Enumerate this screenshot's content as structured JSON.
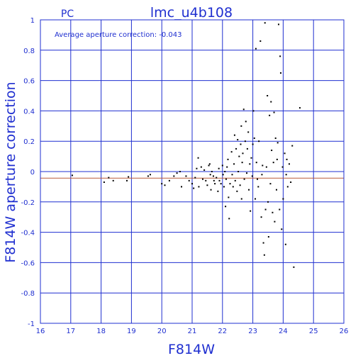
{
  "chart_data": {
    "type": "scatter",
    "title": "lmc_u4b108",
    "subtitle": "PC",
    "annotation": "Average aperture correction: -0.043",
    "xlabel": "F814W",
    "ylabel": "F814W aperture correction",
    "xlim": [
      16,
      26
    ],
    "ylim": [
      -1,
      1
    ],
    "xticks": [
      "16",
      "17",
      "18",
      "19",
      "20",
      "21",
      "22",
      "23",
      "24",
      "25",
      "26"
    ],
    "yticks": [
      "-1",
      "-0.8",
      "-0.6",
      "-0.4",
      "-0.2",
      "0",
      "0.2",
      "0.4",
      "0.6",
      "0.8",
      "1"
    ],
    "grid": true,
    "reference_lines": [
      {
        "name": "zero",
        "y": 0,
        "color": "#1f2fd0"
      },
      {
        "name": "average",
        "y": -0.043,
        "color": "#b85a3a"
      }
    ],
    "colors": {
      "axis": "#1f2fd0",
      "points": "#000000",
      "average_line": "#b85a3a"
    },
    "points": [
      [
        17.05,
        -0.025
      ],
      [
        18.1,
        -0.07
      ],
      [
        18.25,
        -0.04
      ],
      [
        18.4,
        -0.06
      ],
      [
        18.85,
        -0.06
      ],
      [
        18.9,
        -0.035
      ],
      [
        19.55,
        -0.03
      ],
      [
        19.62,
        -0.02
      ],
      [
        20.0,
        -0.08
      ],
      [
        20.1,
        -0.09
      ],
      [
        20.25,
        -0.06
      ],
      [
        20.4,
        -0.03
      ],
      [
        20.5,
        -0.01
      ],
      [
        20.6,
        0.0
      ],
      [
        20.65,
        -0.1
      ],
      [
        20.8,
        -0.03
      ],
      [
        20.9,
        -0.06
      ],
      [
        21.0,
        -0.08
      ],
      [
        21.05,
        -0.11
      ],
      [
        21.1,
        -0.04
      ],
      [
        21.15,
        0.02
      ],
      [
        21.2,
        0.09
      ],
      [
        21.22,
        -0.1
      ],
      [
        21.3,
        0.03
      ],
      [
        21.35,
        -0.05
      ],
      [
        21.4,
        0.01
      ],
      [
        21.45,
        -0.06
      ],
      [
        21.5,
        -0.09
      ],
      [
        21.55,
        0.04
      ],
      [
        21.58,
        0.05
      ],
      [
        21.6,
        -0.02
      ],
      [
        21.62,
        -0.12
      ],
      [
        21.65,
        0.0
      ],
      [
        21.7,
        -0.03
      ],
      [
        21.72,
        -0.06
      ],
      [
        21.75,
        -0.08
      ],
      [
        21.8,
        -0.04
      ],
      [
        21.85,
        -0.13
      ],
      [
        21.88,
        0.02
      ],
      [
        21.9,
        -0.06
      ],
      [
        21.95,
        -0.08
      ],
      [
        22.0,
        0.04
      ],
      [
        22.02,
        -0.02
      ],
      [
        22.05,
        -0.1
      ],
      [
        22.08,
        0.0
      ],
      [
        22.1,
        -0.23
      ],
      [
        22.12,
        -0.05
      ],
      [
        22.15,
        0.03
      ],
      [
        22.18,
        0.08
      ],
      [
        22.2,
        -0.17
      ],
      [
        22.22,
        -0.31
      ],
      [
        22.25,
        -0.08
      ],
      [
        22.3,
        0.13
      ],
      [
        22.32,
        -0.02
      ],
      [
        22.35,
        -0.1
      ],
      [
        22.38,
        0.05
      ],
      [
        22.4,
        0.24
      ],
      [
        22.42,
        -0.06
      ],
      [
        22.45,
        0.15
      ],
      [
        22.48,
        -0.13
      ],
      [
        22.5,
        0.21
      ],
      [
        22.52,
        0.0
      ],
      [
        22.55,
        0.1
      ],
      [
        22.58,
        -0.09
      ],
      [
        22.6,
        0.18
      ],
      [
        22.62,
        0.3
      ],
      [
        22.63,
        -0.18
      ],
      [
        22.65,
        0.06
      ],
      [
        22.67,
        0.12
      ],
      [
        22.7,
        0.41
      ],
      [
        22.72,
        -0.05
      ],
      [
        22.75,
        0.2
      ],
      [
        22.77,
        0.33
      ],
      [
        22.8,
        -0.01
      ],
      [
        22.82,
        0.15
      ],
      [
        22.85,
        0.26
      ],
      [
        22.87,
        -0.12
      ],
      [
        22.9,
        0.05
      ],
      [
        22.92,
        -0.26
      ],
      [
        22.95,
        0.09
      ],
      [
        22.98,
        -0.03
      ],
      [
        23.0,
        0.18
      ],
      [
        23.02,
        0.4
      ],
      [
        23.05,
        0.22
      ],
      [
        23.08,
        -0.18
      ],
      [
        23.1,
        0.81
      ],
      [
        23.12,
        0.06
      ],
      [
        23.15,
        -0.05
      ],
      [
        23.18,
        -0.1
      ],
      [
        23.2,
        0.2
      ],
      [
        23.25,
        0.86
      ],
      [
        23.28,
        -0.3
      ],
      [
        23.3,
        -0.02
      ],
      [
        23.32,
        0.04
      ],
      [
        23.35,
        -0.47
      ],
      [
        23.38,
        -0.55
      ],
      [
        23.4,
        0.98
      ],
      [
        23.42,
        -0.25
      ],
      [
        23.45,
        0.03
      ],
      [
        23.48,
        0.5
      ],
      [
        23.5,
        -0.2
      ],
      [
        23.52,
        -0.43
      ],
      [
        23.55,
        0.37
      ],
      [
        23.58,
        -0.08
      ],
      [
        23.6,
        0.46
      ],
      [
        23.62,
        0.14
      ],
      [
        23.65,
        -0.27
      ],
      [
        23.68,
        0.06
      ],
      [
        23.7,
        0.39
      ],
      [
        23.72,
        -0.33
      ],
      [
        23.75,
        0.22
      ],
      [
        23.78,
        -0.12
      ],
      [
        23.8,
        0.08
      ],
      [
        23.82,
        0.19
      ],
      [
        23.85,
        0.97
      ],
      [
        23.88,
        -0.25
      ],
      [
        23.9,
        0.76
      ],
      [
        23.92,
        0.65
      ],
      [
        23.95,
        -0.38
      ],
      [
        23.98,
        0.03
      ],
      [
        24.0,
        -0.18
      ],
      [
        24.05,
        0.12
      ],
      [
        24.08,
        -0.48
      ],
      [
        24.1,
        -0.02
      ],
      [
        24.12,
        0.08
      ],
      [
        24.15,
        -0.1
      ],
      [
        24.2,
        0.05
      ],
      [
        24.25,
        -0.07
      ],
      [
        24.3,
        0.17
      ],
      [
        24.35,
        -0.63
      ],
      [
        24.55,
        0.42
      ]
    ]
  }
}
